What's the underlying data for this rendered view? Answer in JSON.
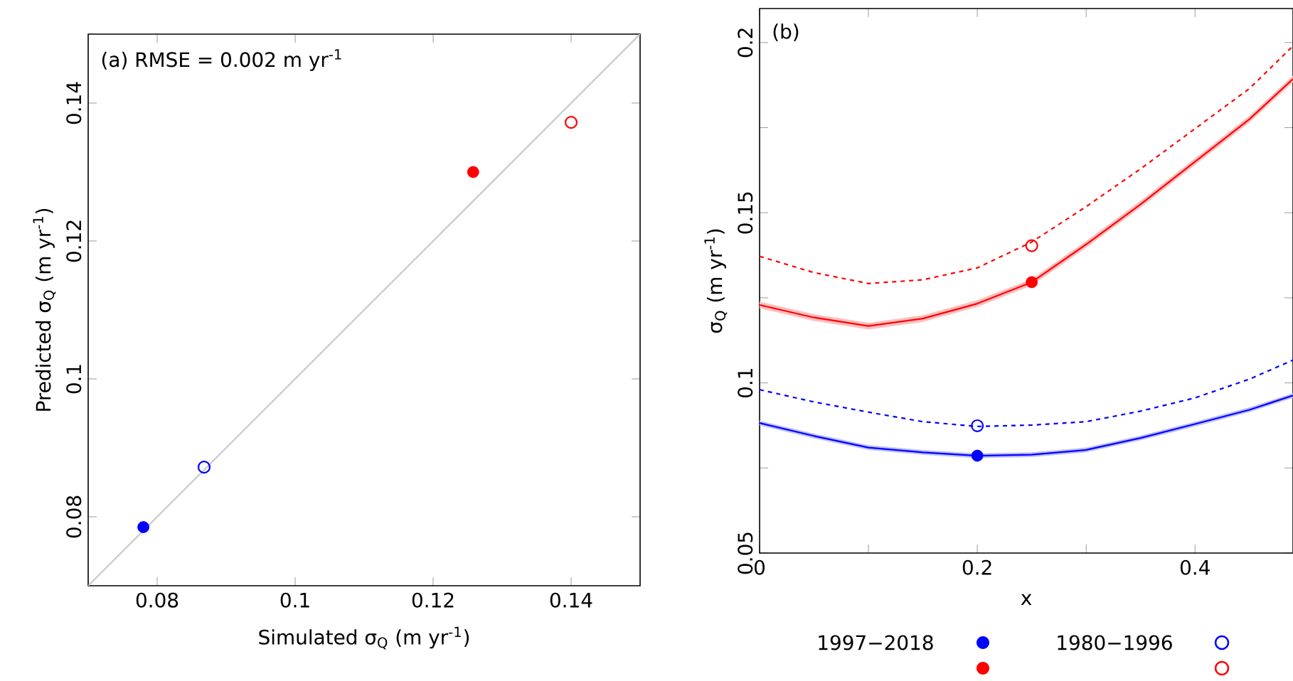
{
  "chart_data": [
    {
      "type": "scatter",
      "xlabel": "Simulated σ$_{Q}$ (m yr$^{-1}$)",
      "ylabel": "Predicted σ$_{Q}$ (m yr$^{-1}$)",
      "annotations": [
        "(a)   RMSE = 0.002 m yr$^{-1}$"
      ],
      "xlim": [
        0.07,
        0.15
      ],
      "ylim": [
        0.07,
        0.15
      ],
      "xticks": [
        0.08,
        0.1,
        0.12,
        0.14
      ],
      "yticks": [
        0.08,
        0.1,
        0.12,
        0.14
      ],
      "series": [
        {
          "type": "line",
          "color": "#c8c8c8",
          "x": [
            0.07,
            0.15
          ],
          "values": [
            0.07,
            0.15
          ],
          "marker": "none",
          "line_style": "solid"
        },
        {
          "color": "#0000ff",
          "x": [
            0.078
          ],
          "values": [
            0.0785
          ],
          "marker": "circle"
        },
        {
          "color": "#0000ff",
          "x": [
            0.0868
          ],
          "values": [
            0.0872
          ],
          "marker": "circle_open"
        },
        {
          "color": "#ff0000",
          "x": [
            0.1258
          ],
          "values": [
            0.13
          ],
          "marker": "circle"
        },
        {
          "color": "#ff0000",
          "x": [
            0.14
          ],
          "values": [
            0.1372
          ],
          "marker": "circle_open"
        }
      ]
    },
    {
      "type": "line",
      "xlabel": "x",
      "ylabel": "σ$_{Q}$ (m yr$^{-1}$)",
      "annotations": [
        "(b)"
      ],
      "legend": "bottom",
      "xlim": [
        0,
        0.49
      ],
      "ylim": [
        0.05,
        0.21
      ],
      "xticks": [
        0,
        {
          "value": 0.1,
          "label": null
        },
        0.2,
        {
          "value": 0.3,
          "label": null
        },
        0.4
      ],
      "yticks": [
        0.05,
        {
          "value": 0.075,
          "label": null
        },
        0.1,
        {
          "value": 0.125,
          "label": null
        },
        0.15,
        {
          "value": 0.175,
          "label": null
        },
        0.2
      ],
      "series": [
        {
          "color": "#ff0000",
          "line_style": "solid",
          "marker": "none",
          "x": [
            0,
            0.05,
            0.1,
            0.15,
            0.2,
            0.25,
            0.3,
            0.35,
            0.4,
            0.45,
            0.49
          ],
          "values": [
            0.1229,
            0.1192,
            0.1167,
            0.1189,
            0.1233,
            0.1296,
            0.1407,
            0.1525,
            0.165,
            0.1775,
            0.1893
          ],
          "lower": [
            0.1219,
            0.1182,
            0.1157,
            0.1179,
            0.1223,
            0.1286,
            0.1397,
            0.1515,
            0.164,
            0.1765,
            0.1883
          ],
          "upper": [
            0.1239,
            0.1202,
            0.1177,
            0.1199,
            0.1243,
            0.1306,
            0.1417,
            0.1535,
            0.166,
            0.1785,
            0.1903
          ]
        },
        {
          "color": "#ff0000",
          "line_style": "dashed",
          "marker": "none",
          "x": [
            0,
            0.05,
            0.1,
            0.15,
            0.2,
            0.25,
            0.3,
            0.35,
            0.4,
            0.45,
            0.49
          ],
          "values": [
            0.1372,
            0.1324,
            0.1292,
            0.1303,
            0.1338,
            0.1414,
            0.1518,
            0.1629,
            0.1747,
            0.1865,
            0.199
          ]
        },
        {
          "color": "#0000ff",
          "line_style": "solid",
          "marker": "none",
          "x": [
            0,
            0.05,
            0.1,
            0.15,
            0.2,
            0.25,
            0.3,
            0.35,
            0.4,
            0.45,
            0.49
          ],
          "values": [
            0.0882,
            0.0844,
            0.081,
            0.0796,
            0.0786,
            0.0789,
            0.0803,
            0.0838,
            0.0879,
            0.0921,
            0.0963
          ],
          "lower": [
            0.0875,
            0.0837,
            0.0803,
            0.0789,
            0.0779,
            0.0782,
            0.0796,
            0.0831,
            0.0872,
            0.0914,
            0.0956
          ],
          "upper": [
            0.0889,
            0.0851,
            0.0817,
            0.0803,
            0.0793,
            0.0796,
            0.081,
            0.0845,
            0.0886,
            0.0928,
            0.097
          ]
        },
        {
          "color": "#0000ff",
          "line_style": "dashed",
          "marker": "none",
          "x": [
            0,
            0.05,
            0.1,
            0.15,
            0.2,
            0.25,
            0.3,
            0.35,
            0.4,
            0.45,
            0.49
          ],
          "values": [
            0.098,
            0.0944,
            0.0914,
            0.0886,
            0.0872,
            0.0876,
            0.0886,
            0.0917,
            0.0956,
            0.1011,
            0.1067
          ]
        },
        {
          "type": "scatter",
          "name": "1997−2018",
          "color": "#0000ff",
          "marker": "circle",
          "x": [
            0.2
          ],
          "values": [
            0.0786
          ]
        },
        {
          "type": "scatter",
          "name": "1980−1996",
          "color": "#0000ff",
          "marker": "circle_open",
          "x": [
            0.2
          ],
          "values": [
            0.0874
          ]
        },
        {
          "type": "scatter",
          "color": "#ff0000",
          "marker": "circle",
          "x": [
            0.25
          ],
          "values": [
            0.1296
          ]
        },
        {
          "type": "scatter",
          "color": "#ff0000",
          "marker": "circle_open",
          "x": [
            0.25
          ],
          "values": [
            0.1403
          ]
        }
      ]
    }
  ]
}
